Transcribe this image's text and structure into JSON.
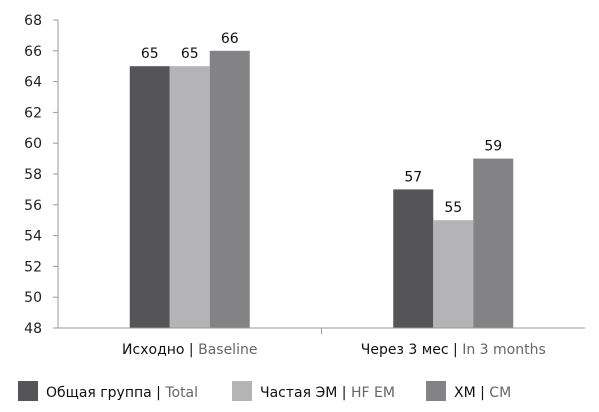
{
  "chart_data": {
    "type": "bar",
    "title": "",
    "xlabel": "",
    "ylabel": "",
    "ylim": [
      48,
      68
    ],
    "yticks": [
      48,
      50,
      52,
      54,
      56,
      58,
      60,
      62,
      64,
      66,
      68
    ],
    "grid": false,
    "legend_position": "bottom",
    "categories": [
      {
        "ru": "Исходно",
        "en": "Baseline"
      },
      {
        "ru": "Через 3 мес",
        "en": "In 3 months"
      }
    ],
    "series": [
      {
        "name": {
          "ru": "Общая группа",
          "en": "Total"
        },
        "color": "#555557",
        "values": [
          65,
          57
        ]
      },
      {
        "name": {
          "ru": "Частая ЭМ",
          "en": "HF EM"
        },
        "color": "#b4b4b6",
        "values": [
          65,
          55
        ]
      },
      {
        "name": {
          "ru": "ХМ",
          "en": "CM"
        },
        "color": "#838386",
        "values": [
          66,
          59
        ]
      }
    ]
  }
}
